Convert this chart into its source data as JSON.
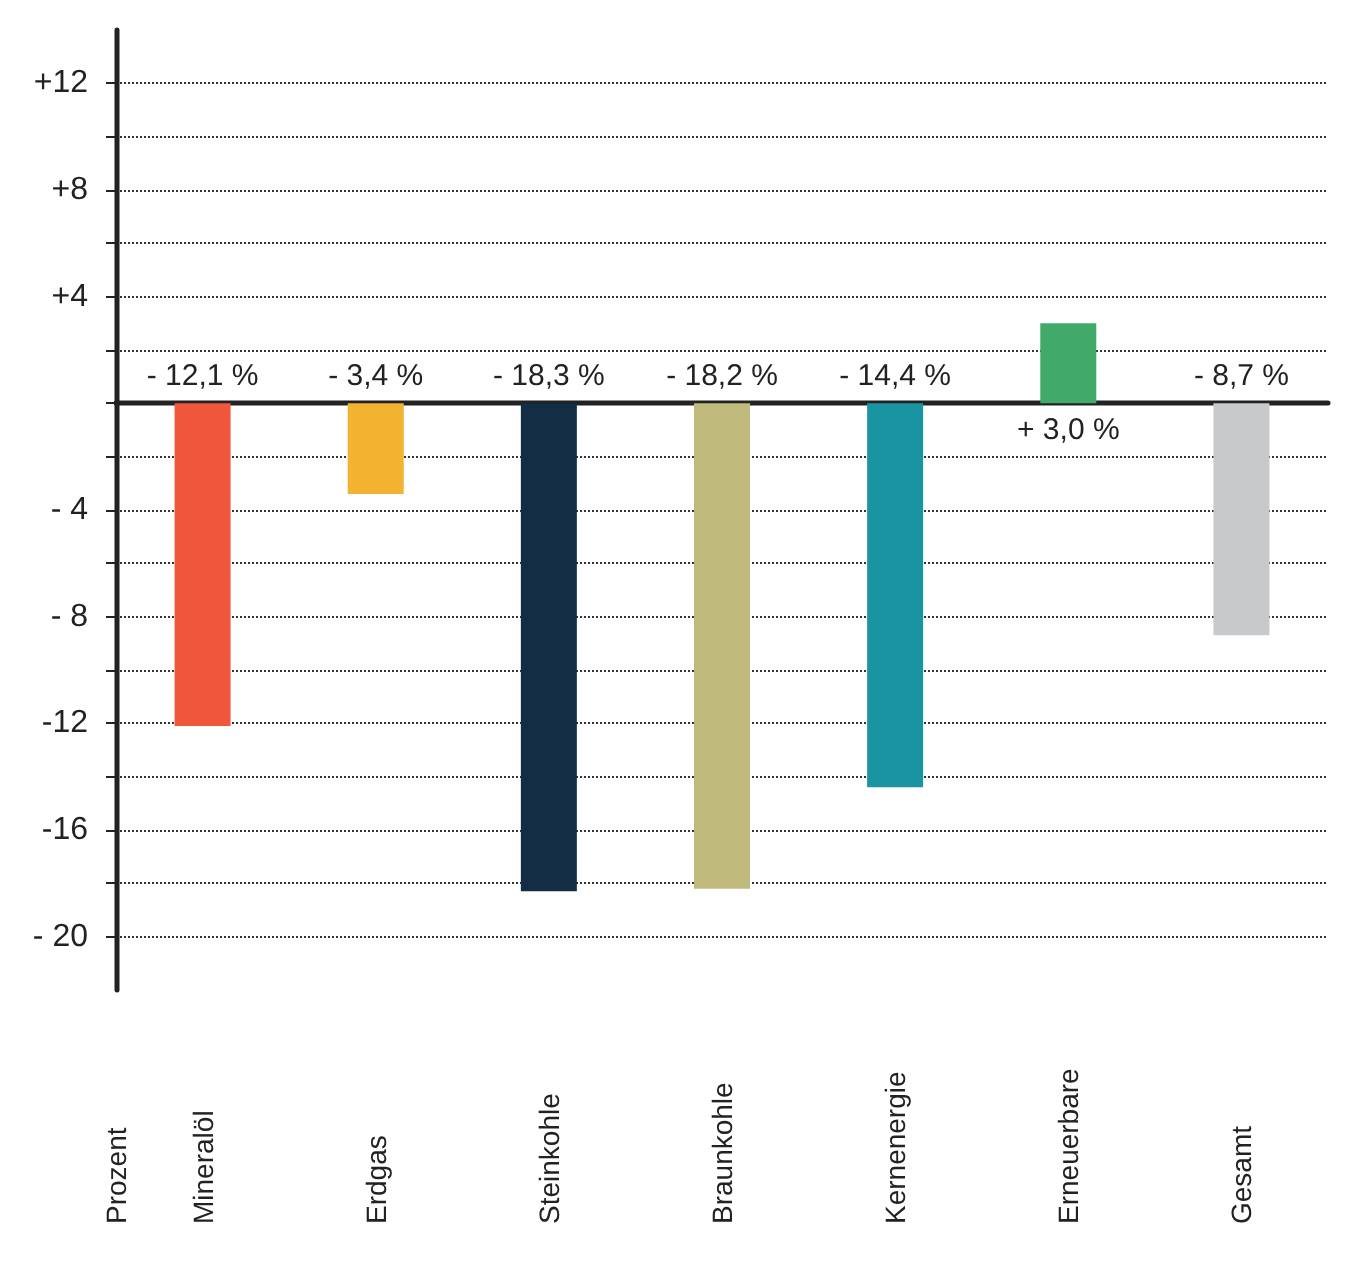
{
  "chart_data": {
    "type": "bar",
    "ylabel": "Prozent",
    "categories": [
      "Mineralöl",
      "Erdgas",
      "Steinkohle",
      "Braunkohle",
      "Kernenergie",
      "Erneuerbare",
      "Gesamt"
    ],
    "values": [
      -12.1,
      -3.4,
      -18.3,
      -18.2,
      -14.4,
      3.0,
      -8.7
    ],
    "value_labels": [
      "- 12,1 %",
      "- 3,4 %",
      "- 18,3 %",
      "- 18,2 %",
      "- 14,4 %",
      "+ 3,0 %",
      "- 8,7 %"
    ],
    "colors": [
      "#ef563c",
      "#f3b22f",
      "#132d45",
      "#bfba7c",
      "#1a94a1",
      "#41aa6b",
      "#c8c9cb"
    ],
    "ylim": [
      -22,
      14
    ],
    "yticks": [
      {
        "value": 12,
        "label": "+12"
      },
      {
        "value": 10,
        "label": null
      },
      {
        "value": 8,
        "label": "+8"
      },
      {
        "value": 6,
        "label": null
      },
      {
        "value": 4,
        "label": "+4"
      },
      {
        "value": 2,
        "label": null
      },
      {
        "value": 0,
        "label": null
      },
      {
        "value": -2,
        "label": null
      },
      {
        "value": -4,
        "label": "- 4"
      },
      {
        "value": -6,
        "label": null
      },
      {
        "value": -8,
        "label": "- 8"
      },
      {
        "value": -10,
        "label": null
      },
      {
        "value": -12,
        "label": "-12"
      },
      {
        "value": -14,
        "label": null
      },
      {
        "value": -16,
        "label": "-16"
      },
      {
        "value": -18,
        "label": null
      },
      {
        "value": -20,
        "label": "- 20"
      }
    ],
    "grid": "y"
  }
}
